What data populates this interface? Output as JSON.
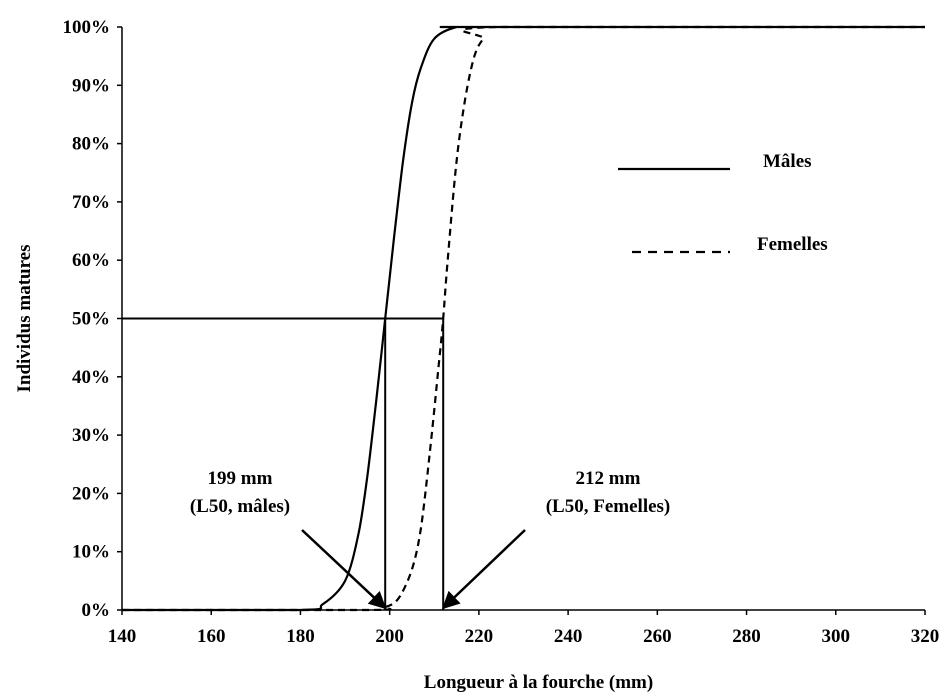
{
  "chart_data": {
    "type": "line",
    "title": "",
    "xlabel": "Longueur à la fourche (mm)",
    "ylabel": "Individus matures",
    "xlim": [
      140,
      320
    ],
    "ylim": [
      0,
      100
    ],
    "x_ticks": [
      "140",
      "160",
      "180",
      "200",
      "220",
      "240",
      "260",
      "280",
      "300",
      "320"
    ],
    "y_ticks": [
      "0%",
      "10%",
      "20%",
      "30%",
      "40%",
      "50%",
      "60%",
      "70%",
      "80%",
      "90%",
      "100%"
    ],
    "series": [
      {
        "name": "Mâles",
        "style": "solid",
        "x": [
          140,
          180,
          185,
          190,
          193,
          195,
          197,
          199,
          201,
          203,
          205,
          207,
          210,
          215,
          220,
          320
        ],
        "y": [
          0,
          0,
          1,
          5,
          13,
          23,
          36,
          50,
          64,
          77,
          87,
          93,
          98,
          100,
          100,
          100
        ]
      },
      {
        "name": "Femelles",
        "style": "dashed",
        "x": [
          140,
          195,
          199,
          202,
          205,
          207,
          209,
          211,
          212,
          213,
          215,
          217,
          219,
          221,
          224,
          320
        ],
        "y": [
          0,
          0,
          0.5,
          2,
          7,
          14,
          27,
          42,
          50,
          60,
          77,
          88,
          95,
          98,
          100,
          100
        ]
      }
    ],
    "reference_lines": {
      "y": 50,
      "x_males": 199,
      "x_females": 212
    },
    "annotations": [
      {
        "lines": [
          "199 mm",
          "(L50, mâles)"
        ],
        "target_x": 199,
        "target_y": 0
      },
      {
        "lines": [
          "212 mm",
          "(L50, Femelles)"
        ],
        "target_x": 212,
        "target_y": 0
      }
    ],
    "legend_position": "right"
  }
}
